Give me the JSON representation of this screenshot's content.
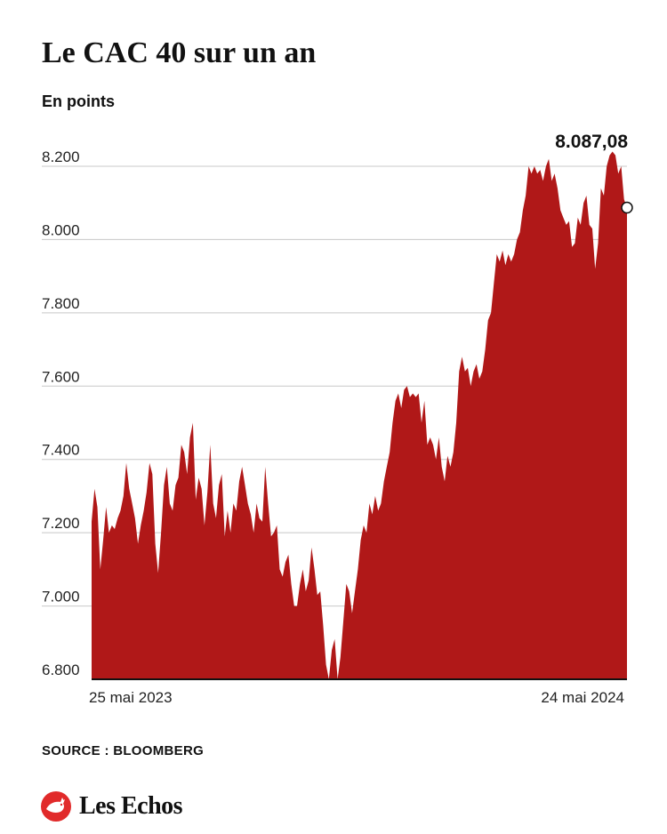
{
  "header": {
    "title": "Le CAC 40 sur un an",
    "subtitle": "En points"
  },
  "chart_data": {
    "type": "area",
    "title": "Le CAC 40 sur un an",
    "ylabel": "En points",
    "xlabel": "",
    "ylim": [
      6800,
      8300
    ],
    "y_ticks": [
      6800,
      7000,
      7200,
      7400,
      7600,
      7800,
      8000,
      8200
    ],
    "y_tick_labels": [
      "6.800",
      "7.000",
      "7.200",
      "7.400",
      "7.600",
      "7.800",
      "8.000",
      "8.200"
    ],
    "x_range_labels": [
      "25 mai 2023",
      "24 mai 2024"
    ],
    "grid": true,
    "fill_color": "#b01818",
    "last_value": 8087.08,
    "last_value_label": "8.087,08",
    "series": [
      {
        "values": [
          7230,
          7320,
          7270,
          7100,
          7180,
          7270,
          7200,
          7220,
          7210,
          7240,
          7260,
          7300,
          7390,
          7320,
          7280,
          7240,
          7170,
          7220,
          7260,
          7310,
          7390,
          7360,
          7170,
          7090,
          7200,
          7330,
          7380,
          7280,
          7260,
          7330,
          7350,
          7440,
          7420,
          7360,
          7460,
          7500,
          7290,
          7350,
          7320,
          7220,
          7310,
          7440,
          7280,
          7240,
          7330,
          7360,
          7190,
          7260,
          7200,
          7280,
          7260,
          7340,
          7380,
          7330,
          7280,
          7250,
          7200,
          7280,
          7240,
          7230,
          7380,
          7280,
          7190,
          7200,
          7220,
          7100,
          7080,
          7120,
          7140,
          7060,
          7000,
          7000,
          7060,
          7100,
          7040,
          7070,
          7160,
          7100,
          7030,
          7040,
          6950,
          6840,
          6800,
          6880,
          6910,
          6800,
          6860,
          6960,
          7060,
          7040,
          6980,
          7040,
          7100,
          7180,
          7220,
          7200,
          7280,
          7250,
          7300,
          7260,
          7280,
          7340,
          7380,
          7420,
          7500,
          7560,
          7580,
          7540,
          7590,
          7600,
          7570,
          7580,
          7570,
          7580,
          7500,
          7560,
          7440,
          7460,
          7440,
          7400,
          7460,
          7380,
          7340,
          7410,
          7380,
          7420,
          7500,
          7640,
          7680,
          7640,
          7650,
          7600,
          7640,
          7660,
          7620,
          7640,
          7700,
          7780,
          7800,
          7880,
          7960,
          7940,
          7970,
          7930,
          7960,
          7940,
          7960,
          8000,
          8020,
          8080,
          8120,
          8200,
          8180,
          8200,
          8180,
          8190,
          8160,
          8200,
          8220,
          8160,
          8180,
          8140,
          8080,
          8060,
          8040,
          8050,
          7980,
          7990,
          8060,
          8040,
          8100,
          8120,
          8040,
          8030,
          7920,
          7990,
          8140,
          8120,
          8200,
          8230,
          8240,
          8230,
          8180,
          8200,
          8110,
          8087.08
        ]
      }
    ]
  },
  "footer": {
    "source": "SOURCE : BLOOMBERG",
    "brand": "Les Echos",
    "logo_icon": "les-echos-rooster-logo-icon",
    "brand_color": "#e12a2a"
  }
}
